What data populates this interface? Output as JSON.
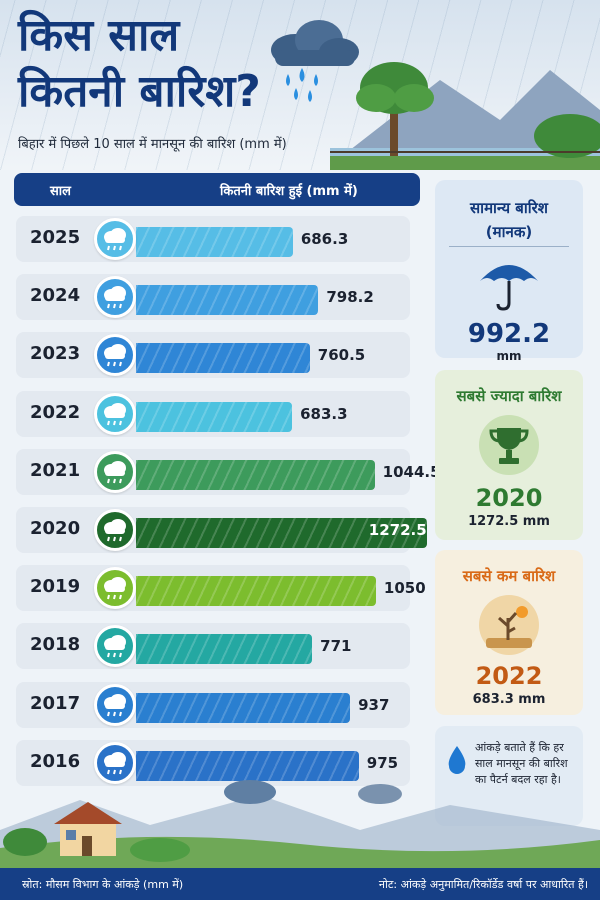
{
  "title": {
    "line1": "किस साल",
    "line2": "कितनी बारिश?"
  },
  "subtitle": "बिहार में पिछले 10 साल में मानसून की बारिश (mm में)",
  "table_header": {
    "year": "साल",
    "amount": "कितनी बारिश हुई (mm में)"
  },
  "chart_data": {
    "type": "bar",
    "title": "किस साल कितनी बारिश?",
    "subtitle": "बिहार में पिछले 10 साल में मानसून की बारिश (mm में)",
    "xlabel": "साल",
    "ylabel": "कितनी बारिश हुई (mm में)",
    "categories": [
      "2025",
      "2024",
      "2023",
      "2022",
      "2021",
      "2020",
      "2019",
      "2018",
      "2017",
      "2016"
    ],
    "values": [
      686.3,
      798.2,
      760.5,
      683.3,
      1044.5,
      1272.5,
      1050,
      771,
      937,
      975
    ],
    "value_labels": [
      "686.3",
      "798.2",
      "760.5",
      "683.3",
      "1044.5",
      "1272.5",
      "1050",
      "771",
      "937",
      "975"
    ],
    "colors": [
      "#56bde6",
      "#3f9fe0",
      "#2f86d6",
      "#4cc2df",
      "#3d9b5c",
      "#1f6a2c",
      "#7cbd2e",
      "#24a8a2",
      "#2a7fd0",
      "#2a72c8"
    ],
    "orientation": "horizontal"
  },
  "cards": {
    "normal": {
      "title_line1": "सामान्य बारिश",
      "title_line2": "(मानक)",
      "value": "992.2",
      "unit": "mm"
    },
    "highest": {
      "title": "सबसे ज्यादा बारिश",
      "year": "2020",
      "amount": "1272.5 mm"
    },
    "lowest": {
      "title": "सबसे कम बारिश",
      "year": "2022",
      "amount": "683.3 mm"
    },
    "note": "आंकड़े बताते हैं कि हर साल मानसून की बारिश का पैटर्न बदल रहा है।"
  },
  "footer": {
    "source": "स्रोत: मौसम विभाग के आंकड़े (mm में)",
    "note": "नोट: आंकड़े अनुमामित/रिकॉर्डेड वर्षा पर आधारित हैं।"
  },
  "icons": {
    "cloud": "rain-cloud-icon",
    "umbrella": "umbrella-icon",
    "trophy": "trophy-icon",
    "drought": "drought-tree-icon",
    "drop": "water-drop-icon"
  }
}
